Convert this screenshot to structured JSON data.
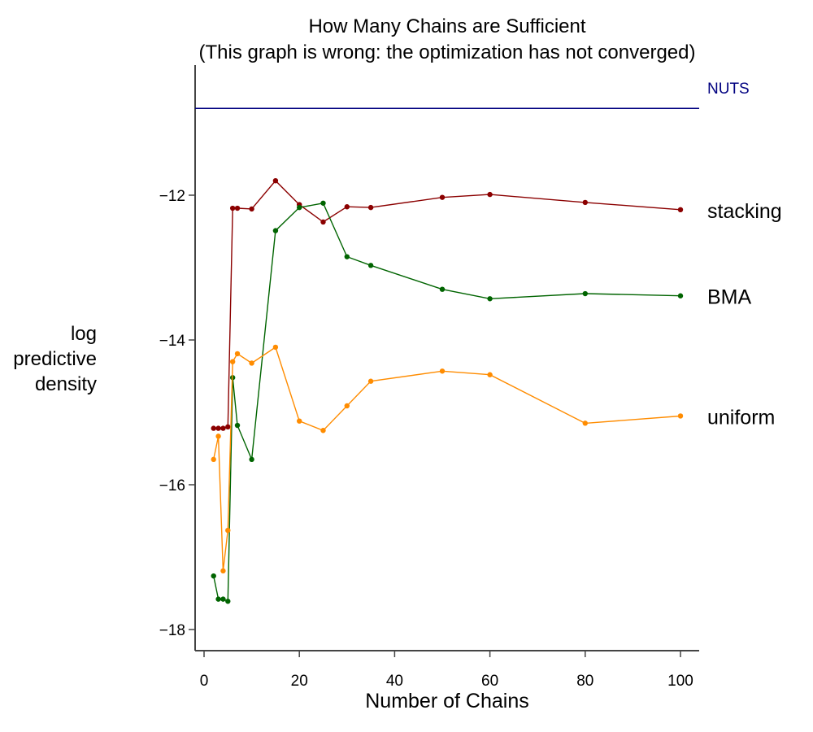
{
  "chart_data": {
    "type": "line",
    "title": "How Many Chains are Sufficient",
    "subtitle": "(This graph is wrong: the optimization has not converged)",
    "xlabel": "Number of Chains",
    "ylabel": [
      "log",
      "predictive",
      "density"
    ],
    "xlim": [
      -2,
      104
    ],
    "ylim": [
      -18.3,
      -10.1
    ],
    "xticks": [
      0,
      20,
      40,
      60,
      80,
      100
    ],
    "xtick_labels": [
      "0",
      "20",
      "40",
      "60",
      "80",
      "100"
    ],
    "yticks": [
      -12,
      -14,
      -16,
      -18
    ],
    "ytick_labels": [
      "−12",
      "−14",
      "−16",
      "−18"
    ],
    "grid": false,
    "reference_line": {
      "name": "NUTS",
      "value": -10.8,
      "color": "#000080"
    },
    "series": [
      {
        "name": "stacking",
        "color": "#8b0000",
        "x": [
          2,
          3,
          4,
          5,
          6,
          7,
          10,
          15,
          20,
          25,
          30,
          35,
          50,
          60,
          80,
          100
        ],
        "y": [
          -15.22,
          -15.22,
          -15.22,
          -15.2,
          -12.18,
          -12.18,
          -12.19,
          -11.8,
          -12.13,
          -12.37,
          -12.16,
          -12.17,
          -12.03,
          -11.99,
          -12.1,
          -12.2
        ]
      },
      {
        "name": "BMA",
        "color": "#006400",
        "x": [
          2,
          3,
          4,
          5,
          6,
          7,
          10,
          15,
          20,
          25,
          30,
          35,
          50,
          60,
          80,
          100
        ],
        "y": [
          -17.26,
          -17.58,
          -17.58,
          -17.61,
          -14.52,
          -15.18,
          -15.65,
          -12.49,
          -12.17,
          -12.11,
          -12.85,
          -12.97,
          -13.3,
          -13.43,
          -13.36,
          -13.39
        ]
      },
      {
        "name": "uniform",
        "color": "#ff8c00",
        "x": [
          2,
          3,
          4,
          5,
          6,
          7,
          10,
          15,
          20,
          25,
          30,
          35,
          50,
          60,
          80,
          100
        ],
        "y": [
          -15.65,
          -15.33,
          -17.19,
          -16.63,
          -14.3,
          -14.19,
          -14.32,
          -14.1,
          -15.12,
          -15.25,
          -14.91,
          -14.57,
          -14.43,
          -14.48,
          -15.15,
          -15.05
        ]
      }
    ]
  }
}
